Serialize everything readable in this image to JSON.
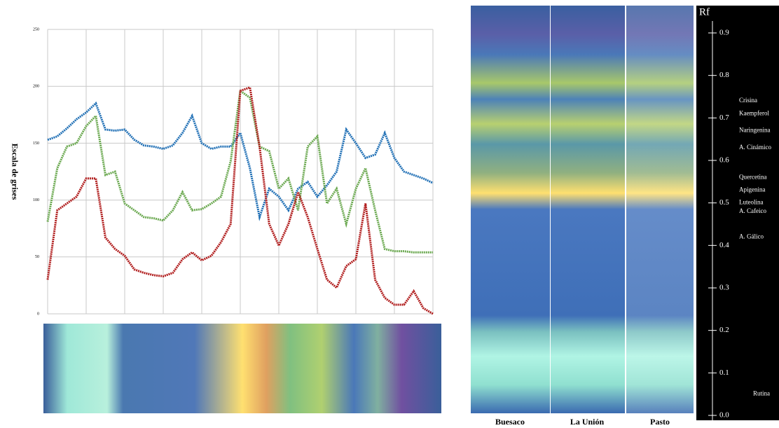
{
  "chart_data": {
    "type": "line",
    "y_label": "Escala de grises",
    "x": [
      0,
      2.5,
      5,
      7.5,
      10,
      12.5,
      15,
      17.5,
      20,
      22.5,
      25,
      27.5,
      30,
      32.5,
      35,
      37.5,
      40,
      42.5,
      45,
      47.5,
      50,
      52.5,
      55,
      57.5,
      60,
      62.5,
      65,
      67.5,
      70,
      72.5,
      75,
      77.5,
      80,
      82.5,
      85,
      87.5,
      90,
      92.5,
      95,
      97.5,
      100
    ],
    "xlim": [
      0,
      100
    ],
    "xticks": [
      0,
      10,
      20,
      30,
      40,
      50,
      60,
      70,
      80,
      90,
      100
    ],
    "ylim": [
      0,
      250
    ],
    "yticks": [
      0,
      50,
      100,
      150,
      200,
      250
    ],
    "grid": true,
    "series": [
      {
        "color": "#1f6fb5",
        "values": [
          153,
          156,
          163,
          171,
          177,
          185,
          162,
          161,
          162,
          153,
          148,
          147,
          145,
          148,
          159,
          174,
          150,
          145,
          147,
          147,
          159,
          128,
          85,
          110,
          103,
          91,
          110,
          116,
          103,
          113,
          125,
          162,
          150,
          137,
          140,
          159,
          137,
          125,
          122,
          119,
          115
        ]
      },
      {
        "color": "#6aa84f",
        "values": [
          81,
          128,
          147,
          150,
          165,
          174,
          122,
          125,
          97,
          91,
          85,
          84,
          82,
          91,
          107,
          91,
          92,
          97,
          103,
          134,
          196,
          190,
          147,
          143,
          110,
          119,
          91,
          147,
          156,
          97,
          110,
          79,
          110,
          128,
          91,
          57,
          55,
          55,
          54,
          54,
          54
        ]
      },
      {
        "color": "#b01c1c",
        "values": [
          30,
          91,
          97,
          103,
          119,
          119,
          67,
          57,
          51,
          39,
          36,
          34,
          33,
          36,
          48,
          54,
          47,
          51,
          63,
          79,
          196,
          199,
          147,
          79,
          60,
          79,
          107,
          85,
          57,
          30,
          23,
          42,
          48,
          97,
          30,
          14,
          8,
          8,
          20,
          5,
          0
        ]
      }
    ]
  },
  "plate": {
    "lanes": [
      "Buesaco",
      "La Unión",
      "Pasto"
    ],
    "rf_title": "Rf",
    "rf_lim": [
      0,
      0.9
    ],
    "rf_ticks": [
      {
        "value": 0,
        "label": "0.0"
      },
      0.1,
      0.2,
      0.3,
      0.4,
      0.5,
      0.6,
      0.7,
      0.8,
      0.9
    ],
    "compounds": [
      {
        "label": "Crisina",
        "rf": 0.74
      },
      {
        "label": "Kaempferol",
        "rf": 0.71
      },
      {
        "label": "Naringenina",
        "rf": 0.67
      },
      {
        "label": "A. Cinámico",
        "rf": 0.63
      },
      {
        "label": "Quercetina",
        "rf": 0.56
      },
      {
        "label": "Apigenina",
        "rf": 0.53
      },
      {
        "label": "Luteolina",
        "rf": 0.5
      },
      {
        "label": "A. Cafeico",
        "rf": 0.48
      },
      {
        "label": "A. Gálico",
        "rf": 0.42
      },
      {
        "label": "Rutina",
        "rf": 0.05
      }
    ]
  }
}
